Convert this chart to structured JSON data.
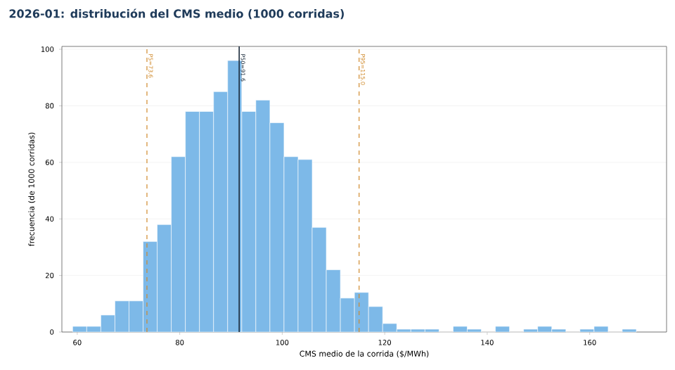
{
  "chart_data": {
    "type": "histogram",
    "title": "2026-01: distribución del CMS medio (1000 corridas)",
    "xlabel": "CMS medio de la corrida ($/MWh)",
    "ylabel": "frecuencia (de 1000 corridas)",
    "bins": [
      59.1,
      61.85,
      64.6,
      67.35,
      70.1,
      72.85,
      75.6,
      78.35,
      81.1,
      83.85,
      86.6,
      89.35,
      92.1,
      94.85,
      97.6,
      100.35,
      103.1,
      105.85,
      108.6,
      111.35,
      114.1,
      116.85,
      119.6,
      122.35,
      125.1,
      127.85,
      130.6,
      133.35,
      136.1,
      138.85,
      141.6,
      144.35,
      147.1,
      149.85,
      152.6,
      155.35,
      158.1,
      160.85,
      163.6,
      166.35,
      169.1
    ],
    "values": [
      2,
      2,
      6,
      11,
      11,
      32,
      38,
      62,
      78,
      78,
      85,
      96,
      78,
      82,
      74,
      62,
      61,
      37,
      22,
      12,
      14,
      9,
      3,
      1,
      1,
      1,
      0,
      2,
      1,
      0,
      2,
      0,
      1,
      2,
      1,
      0,
      1,
      2,
      0,
      1
    ],
    "color": "#7db9e8",
    "xlim": [
      57,
      175
    ],
    "ylim": [
      0,
      101
    ],
    "xticks": [
      60,
      80,
      100,
      120,
      140,
      160
    ],
    "yticks": [
      0,
      20,
      40,
      60,
      80,
      100
    ],
    "grid": "y",
    "ref_lines": [
      {
        "axis": "x",
        "value": 73.6,
        "label": "P5=73.6",
        "color": "#d08a2c",
        "line_style": "dashed"
      },
      {
        "axis": "x",
        "value": 91.6,
        "label": "P50=91.6",
        "color": "#1a2a3a",
        "line_style": "solid"
      },
      {
        "axis": "x",
        "value": 115.0,
        "label": "P95=115.0",
        "color": "#d08a2c",
        "line_style": "dashed"
      }
    ]
  }
}
